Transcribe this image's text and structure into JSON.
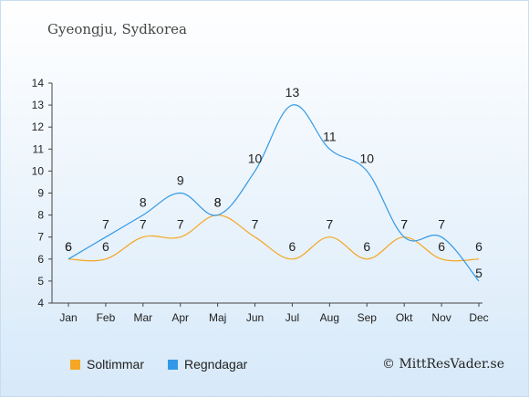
{
  "header": {
    "location": "Gyeongju, Sydkorea"
  },
  "legend": {
    "sun_label": "Soltimmar",
    "rain_label": "Regndagar"
  },
  "footer": {
    "copyright": "© MittResVader.se"
  },
  "colors": {
    "sun": "#f5a623",
    "rain": "#3399e6",
    "axis": "#444444"
  },
  "chart_data": {
    "type": "line",
    "categories": [
      "Jan",
      "Feb",
      "Mar",
      "Apr",
      "Maj",
      "Jun",
      "Jul",
      "Aug",
      "Sep",
      "Okt",
      "Nov",
      "Dec"
    ],
    "ylim": [
      4,
      14
    ],
    "yticks": [
      4,
      5,
      6,
      7,
      8,
      9,
      10,
      11,
      12,
      13,
      14
    ],
    "series": [
      {
        "name": "Soltimmar",
        "values": [
          6,
          6,
          7,
          7,
          8,
          7,
          6,
          7,
          6,
          7,
          6,
          6
        ]
      },
      {
        "name": "Regndagar",
        "values": [
          6,
          7,
          8,
          9,
          8,
          10,
          13,
          11,
          10,
          7,
          7,
          5
        ]
      }
    ],
    "legend_position": "bottom-left",
    "grid": false
  }
}
